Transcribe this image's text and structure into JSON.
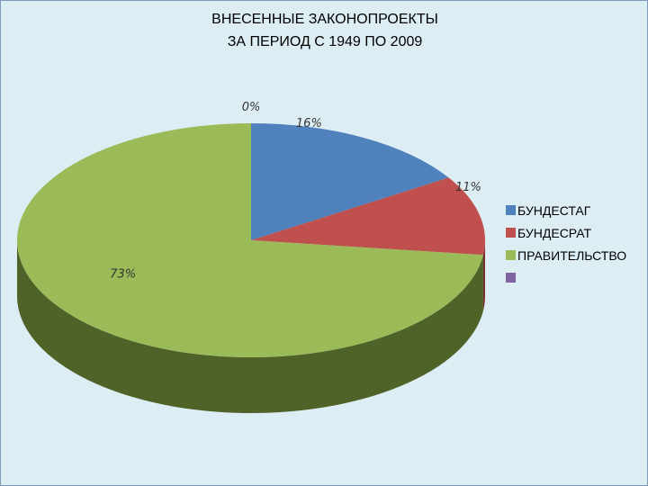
{
  "chart_data": {
    "type": "pie",
    "title": [
      "ВНЕСЕННЫЕ ЗАКОНОПРОЕКТЫ",
      "ЗА ПЕРИОД  С 1949 ПО 2009"
    ],
    "slices": [
      {
        "label": "БУНДЕСТАГ",
        "value": 16,
        "display": "16%",
        "color": "#4f81bd",
        "side": "#2e4d72"
      },
      {
        "label": "БУНДЕСРАТ",
        "value": 11,
        "display": "11%",
        "color": "#c0504d",
        "side": "#7a302e"
      },
      {
        "label": "ПРАВИТЕЛЬСТВО",
        "value": 73,
        "display": "73%",
        "color": "#9bbb59",
        "side": "#4f6228"
      },
      {
        "label": "",
        "value": 0,
        "display": "0%",
        "color": "#8064a2",
        "side": "#4d3b63"
      }
    ],
    "legend_position": "right",
    "style": "3d"
  }
}
